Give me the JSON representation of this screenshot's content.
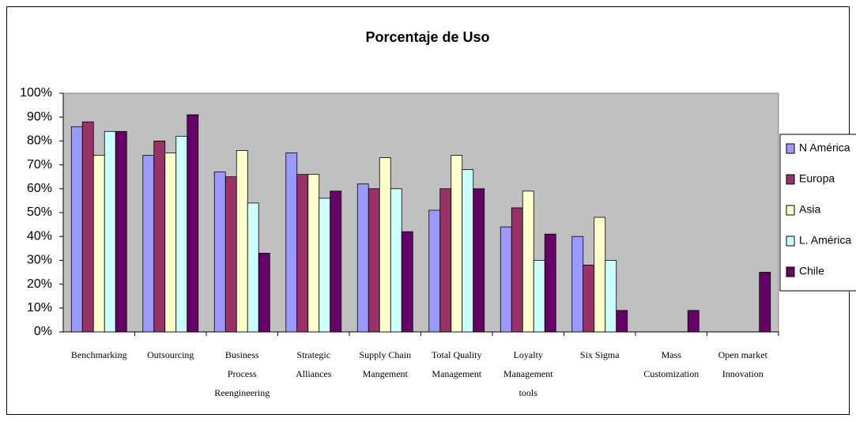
{
  "chart_data": {
    "type": "bar",
    "title": "Porcentaje de Uso",
    "categories": [
      [
        "Benchmarking"
      ],
      [
        "Outsourcing"
      ],
      [
        "Business",
        "Process",
        "Reengineering"
      ],
      [
        "Strategic",
        "Alliances"
      ],
      [
        "Supply Chain",
        "Mangement"
      ],
      [
        "Total Quality",
        "Management"
      ],
      [
        "Loyalty",
        "Management",
        "tools"
      ],
      [
        "Six Sigma"
      ],
      [
        "Mass",
        "Customization"
      ],
      [
        "Open market",
        "Innovation"
      ]
    ],
    "series": [
      {
        "name": "N América",
        "color": "#9999ff",
        "values": [
          86,
          74,
          67,
          75,
          62,
          51,
          44,
          40,
          0,
          0
        ]
      },
      {
        "name": "Europa",
        "color": "#993366",
        "values": [
          88,
          80,
          65,
          66,
          60,
          60,
          52,
          28,
          0,
          0
        ]
      },
      {
        "name": "Asia",
        "color": "#ffffcc",
        "values": [
          74,
          75,
          76,
          66,
          73,
          74,
          59,
          48,
          0,
          0
        ]
      },
      {
        "name": "L. América",
        "color": "#ccffff",
        "values": [
          84,
          82,
          54,
          56,
          60,
          68,
          30,
          30,
          0,
          0
        ]
      },
      {
        "name": "Chile",
        "color": "#660066",
        "values": [
          84,
          91,
          33,
          59,
          42,
          60,
          41,
          9,
          9,
          25
        ]
      }
    ],
    "ylim": [
      0,
      100
    ],
    "yticks": [
      {
        "value": 0,
        "label": "0%"
      },
      {
        "value": 10,
        "label": "10%"
      },
      {
        "value": 20,
        "label": "20%"
      },
      {
        "value": 30,
        "label": "30%"
      },
      {
        "value": 40,
        "label": "40%"
      },
      {
        "value": 50,
        "label": "50%"
      },
      {
        "value": 60,
        "label": "60%"
      },
      {
        "value": 70,
        "label": "70%"
      },
      {
        "value": 80,
        "label": "80%"
      },
      {
        "value": 90,
        "label": "90%"
      },
      {
        "value": 100,
        "label": "100%"
      }
    ],
    "plot_background": "#c0c0c0",
    "legend": "right"
  }
}
